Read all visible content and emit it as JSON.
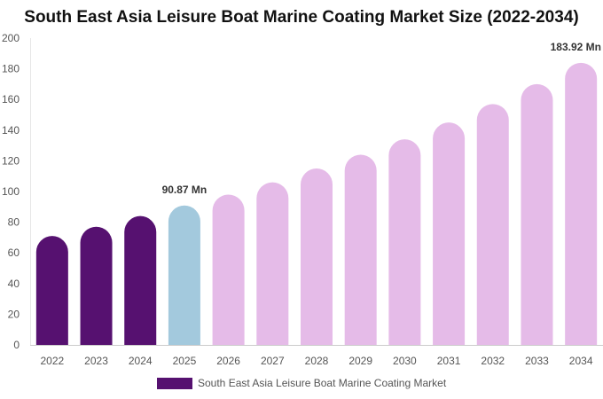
{
  "chart_data": {
    "type": "bar",
    "title": "South East Asia Leisure Boat Marine Coating Market Size (2022-2034)",
    "categories": [
      "2022",
      "2023",
      "2024",
      "2025",
      "2026",
      "2027",
      "2028",
      "2029",
      "2030",
      "2031",
      "2032",
      "2033",
      "2034"
    ],
    "series": [
      {
        "name": "South East Asia Leisure Boat Marine Coating Market",
        "values": [
          71,
          77,
          84,
          90.87,
          98,
          106,
          115,
          124,
          134,
          145,
          157,
          170,
          183.92
        ]
      }
    ],
    "bar_colors": [
      "#561170",
      "#561170",
      "#561170",
      "#a3c9dd",
      "#e5bbe8",
      "#e5bbe8",
      "#e5bbe8",
      "#e5bbe8",
      "#e5bbe8",
      "#e5bbe8",
      "#e5bbe8",
      "#e5bbe8",
      "#e5bbe8"
    ],
    "legend_color": "#561170",
    "data_labels": [
      {
        "category": "2025",
        "text": "90.87 Mn"
      },
      {
        "category": "2034",
        "text": "183.92 Mn"
      }
    ],
    "ylim": [
      0,
      200
    ],
    "yticks": [
      0,
      20,
      40,
      60,
      80,
      100,
      120,
      140,
      160,
      180,
      200
    ],
    "xlabel": "",
    "ylabel": "",
    "grid": false,
    "legend_position": "bottom"
  }
}
